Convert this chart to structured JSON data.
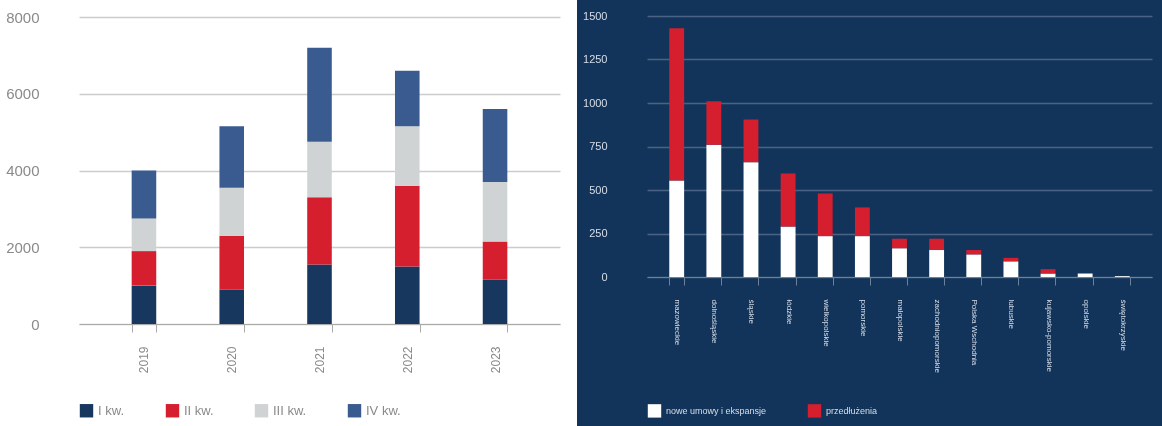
{
  "chart_data": [
    {
      "type": "bar",
      "stacked": true,
      "categories": [
        "2019",
        "2020",
        "2021",
        "2022",
        "2023"
      ],
      "series": [
        {
          "name": "I kw.",
          "color": "#17375e",
          "values": [
            1000,
            900,
            1550,
            1500,
            1150
          ]
        },
        {
          "name": "II kw.",
          "color": "#d51f2e",
          "values": [
            900,
            1400,
            1750,
            2100,
            1000
          ]
        },
        {
          "name": "III kw.",
          "color": "#d0d3d4",
          "values": [
            850,
            1250,
            1450,
            1550,
            1550
          ]
        },
        {
          "name": "IV kw.",
          "color": "#3a5b8f",
          "values": [
            1250,
            1600,
            2450,
            1450,
            1900
          ]
        }
      ],
      "ylim": [
        0,
        8000
      ],
      "yticks": [
        0,
        2000,
        4000,
        6000,
        8000
      ],
      "grid": "y",
      "legend": "bottom"
    },
    {
      "type": "bar",
      "stacked": true,
      "categories": [
        "mazowieckie",
        "dolnośląskie",
        "śląskie",
        "łódzkie",
        "wielkopolskie",
        "pomorskie",
        "małopolskie",
        "zachodniopomorskie",
        "Polska Wschodnia",
        "lubuskie",
        "kujawsko-pomorskie",
        "opolskie",
        "świętokrzyskie"
      ],
      "series": [
        {
          "name": "nowe umowy i ekspansje",
          "color": "#ffffff",
          "values": [
            555,
            760,
            660,
            290,
            235,
            235,
            165,
            155,
            130,
            90,
            20,
            20,
            5
          ]
        },
        {
          "name": "przedłużenia",
          "color": "#d51f2e",
          "values": [
            875,
            250,
            245,
            305,
            245,
            165,
            55,
            65,
            25,
            20,
            25,
            0,
            0
          ]
        }
      ],
      "ylim": [
        0,
        1500
      ],
      "yticks": [
        0,
        250,
        500,
        750,
        1000,
        1250,
        1500
      ],
      "grid": "y",
      "legend": "bottom left"
    }
  ]
}
